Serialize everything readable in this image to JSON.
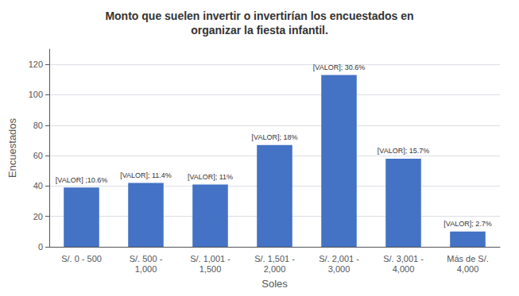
{
  "chart_data": {
    "type": "bar",
    "title": "Monto que suelen invertir o invertirían los encuestados en\norganizar la fiesta infantil.",
    "xlabel": "Soles",
    "ylabel": "Encuestados",
    "categories": [
      "S/. 0 - 500",
      "S/. 500 -\n1,000",
      "S/. 1,001 -\n1,500",
      "S/. 1,501 -\n2,000",
      "S/. 2,001 -\n3,000",
      "S/. 3,001 -\n4,000",
      "Más de S/.\n4,000"
    ],
    "values": [
      39,
      42,
      41,
      67,
      113,
      58,
      10
    ],
    "value_labels": [
      "[VALOR] ;10.6%",
      "[VALOR]; 11.4%",
      "[VALOR]; 11%",
      "[VALOR]; 18%",
      "[VALOR]; 30.6%",
      "[VALOR]; 15.7%",
      "[VALOR]; 2.7%"
    ],
    "color": "#4472C4",
    "ylim": [
      0,
      130
    ],
    "yticks": [
      0,
      20,
      40,
      60,
      80,
      100,
      120
    ],
    "grid": true
  }
}
